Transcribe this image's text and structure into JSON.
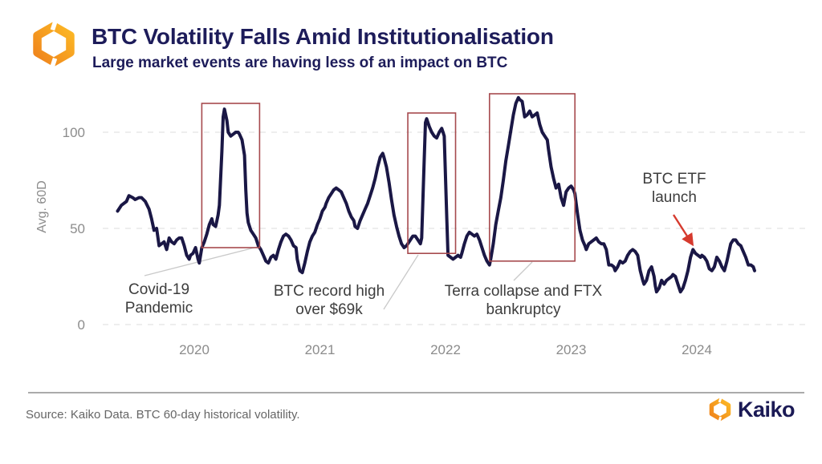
{
  "header": {
    "title": "BTC Volatility Falls Amid Institutionalisation",
    "subtitle": "Large market events are having less of an impact on BTC"
  },
  "footer": {
    "source": "Source: Kaiko Data. BTC 60-day historical volatility.",
    "brand": "Kaiko"
  },
  "colors": {
    "line": "#1a1745",
    "title_navy": "#1d1c5a",
    "highlight_box": "#a64a4e",
    "arrow_red": "#d63a2e",
    "leader_gray": "#c9c9c9",
    "gridline": "#e8e8e8",
    "axis_text": "#8c8c8c",
    "annotation_text": "#3d3d3d",
    "logo_orange_dark": "#ef831c",
    "logo_orange_light": "#fcb825"
  },
  "chart_data": {
    "type": "line",
    "title": "BTC Volatility Falls Amid Institutionalisation",
    "subtitle": "Large market events are having less of an impact on BTC",
    "ylabel": "Avg. 60D",
    "xlabel": "",
    "grid": "horizontal-dashed",
    "legend": "none",
    "y_ticks": [
      0,
      50,
      100
    ],
    "x_ticks": [
      2020,
      2021,
      2022,
      2023,
      2024
    ],
    "ylim": [
      0,
      121
    ],
    "xlim": [
      2019.3,
      2024.55
    ],
    "series": [
      {
        "name": "BTC 60-day historical volatility",
        "points": [
          [
            2019.39,
            59
          ],
          [
            2019.42,
            62
          ],
          [
            2019.46,
            64
          ],
          [
            2019.48,
            67
          ],
          [
            2019.51,
            66
          ],
          [
            2019.53,
            65
          ],
          [
            2019.56,
            66
          ],
          [
            2019.58,
            66
          ],
          [
            2019.61,
            64
          ],
          [
            2019.64,
            60
          ],
          [
            2019.66,
            55
          ],
          [
            2019.68,
            49
          ],
          [
            2019.7,
            50
          ],
          [
            2019.72,
            41
          ],
          [
            2019.74,
            42
          ],
          [
            2019.76,
            43
          ],
          [
            2019.78,
            39
          ],
          [
            2019.8,
            45
          ],
          [
            2019.82,
            43
          ],
          [
            2019.84,
            42
          ],
          [
            2019.86,
            44
          ],
          [
            2019.88,
            45
          ],
          [
            2019.9,
            45
          ],
          [
            2019.92,
            41
          ],
          [
            2019.94,
            36
          ],
          [
            2019.96,
            34
          ],
          [
            2019.97,
            36
          ],
          [
            2019.99,
            37
          ],
          [
            2020.01,
            40
          ],
          [
            2020.03,
            34
          ],
          [
            2020.04,
            32
          ],
          [
            2020.06,
            40
          ],
          [
            2020.08,
            43
          ],
          [
            2020.1,
            47
          ],
          [
            2020.12,
            52
          ],
          [
            2020.14,
            55
          ],
          [
            2020.15,
            52
          ],
          [
            2020.17,
            51
          ],
          [
            2020.18,
            54
          ],
          [
            2020.19,
            57
          ],
          [
            2020.2,
            62
          ],
          [
            2020.22,
            90
          ],
          [
            2020.23,
            108
          ],
          [
            2020.24,
            112
          ],
          [
            2020.26,
            106
          ],
          [
            2020.27,
            100
          ],
          [
            2020.29,
            98
          ],
          [
            2020.31,
            99
          ],
          [
            2020.33,
            100
          ],
          [
            2020.35,
            100
          ],
          [
            2020.36,
            99
          ],
          [
            2020.38,
            96
          ],
          [
            2020.4,
            88
          ],
          [
            2020.41,
            70
          ],
          [
            2020.42,
            58
          ],
          [
            2020.43,
            53
          ],
          [
            2020.45,
            49
          ],
          [
            2020.47,
            47
          ],
          [
            2020.49,
            45
          ],
          [
            2020.51,
            41
          ],
          [
            2020.53,
            39
          ],
          [
            2020.55,
            36
          ],
          [
            2020.57,
            33
          ],
          [
            2020.59,
            32
          ],
          [
            2020.61,
            35
          ],
          [
            2020.63,
            36
          ],
          [
            2020.65,
            34
          ],
          [
            2020.67,
            39
          ],
          [
            2020.69,
            43
          ],
          [
            2020.71,
            46
          ],
          [
            2020.73,
            47
          ],
          [
            2020.75,
            46
          ],
          [
            2020.77,
            44
          ],
          [
            2020.79,
            41
          ],
          [
            2020.81,
            40
          ],
          [
            2020.82,
            34
          ],
          [
            2020.84,
            28
          ],
          [
            2020.86,
            27
          ],
          [
            2020.88,
            32
          ],
          [
            2020.9,
            38
          ],
          [
            2020.92,
            43
          ],
          [
            2020.94,
            46
          ],
          [
            2020.96,
            48
          ],
          [
            2020.98,
            52
          ],
          [
            2021.0,
            55
          ],
          [
            2021.02,
            59
          ],
          [
            2021.04,
            61
          ],
          [
            2021.05,
            63
          ],
          [
            2021.07,
            66
          ],
          [
            2021.09,
            68
          ],
          [
            2021.11,
            70
          ],
          [
            2021.13,
            71
          ],
          [
            2021.15,
            70
          ],
          [
            2021.17,
            69
          ],
          [
            2021.19,
            66
          ],
          [
            2021.21,
            63
          ],
          [
            2021.23,
            59
          ],
          [
            2021.25,
            56
          ],
          [
            2021.27,
            54
          ],
          [
            2021.28,
            51
          ],
          [
            2021.3,
            50
          ],
          [
            2021.32,
            54
          ],
          [
            2021.34,
            57
          ],
          [
            2021.36,
            60
          ],
          [
            2021.38,
            63
          ],
          [
            2021.4,
            67
          ],
          [
            2021.42,
            71
          ],
          [
            2021.44,
            76
          ],
          [
            2021.46,
            82
          ],
          [
            2021.48,
            87
          ],
          [
            2021.5,
            89
          ],
          [
            2021.51,
            87
          ],
          [
            2021.53,
            82
          ],
          [
            2021.55,
            74
          ],
          [
            2021.57,
            65
          ],
          [
            2021.59,
            57
          ],
          [
            2021.61,
            51
          ],
          [
            2021.63,
            46
          ],
          [
            2021.65,
            42
          ],
          [
            2021.67,
            40
          ],
          [
            2021.69,
            41
          ],
          [
            2021.71,
            43
          ],
          [
            2021.73,
            45
          ],
          [
            2021.74,
            46
          ],
          [
            2021.76,
            46
          ],
          [
            2021.78,
            44
          ],
          [
            2021.8,
            42
          ],
          [
            2021.81,
            45
          ],
          [
            2021.83,
            85
          ],
          [
            2021.84,
            105
          ],
          [
            2021.85,
            107
          ],
          [
            2021.87,
            103
          ],
          [
            2021.89,
            100
          ],
          [
            2021.91,
            98
          ],
          [
            2021.93,
            97
          ],
          [
            2021.95,
            100
          ],
          [
            2021.97,
            102
          ],
          [
            2021.98,
            100
          ],
          [
            2021.99,
            98
          ],
          [
            2022.01,
            55
          ],
          [
            2022.02,
            36
          ],
          [
            2022.04,
            35
          ],
          [
            2022.06,
            34
          ],
          [
            2022.08,
            35
          ],
          [
            2022.1,
            36
          ],
          [
            2022.12,
            35
          ],
          [
            2022.13,
            37
          ],
          [
            2022.15,
            42
          ],
          [
            2022.17,
            46
          ],
          [
            2022.19,
            48
          ],
          [
            2022.21,
            47
          ],
          [
            2022.23,
            46
          ],
          [
            2022.25,
            47
          ],
          [
            2022.27,
            44
          ],
          [
            2022.29,
            40
          ],
          [
            2022.31,
            36
          ],
          [
            2022.33,
            33
          ],
          [
            2022.35,
            31
          ],
          [
            2022.36,
            34
          ],
          [
            2022.38,
            42
          ],
          [
            2022.4,
            52
          ],
          [
            2022.42,
            59
          ],
          [
            2022.44,
            66
          ],
          [
            2022.46,
            75
          ],
          [
            2022.48,
            85
          ],
          [
            2022.5,
            93
          ],
          [
            2022.52,
            101
          ],
          [
            2022.54,
            109
          ],
          [
            2022.56,
            115
          ],
          [
            2022.58,
            118
          ],
          [
            2022.59,
            117
          ],
          [
            2022.61,
            116
          ],
          [
            2022.63,
            108
          ],
          [
            2022.65,
            109
          ],
          [
            2022.67,
            111
          ],
          [
            2022.69,
            108
          ],
          [
            2022.71,
            109
          ],
          [
            2022.73,
            110
          ],
          [
            2022.75,
            104
          ],
          [
            2022.77,
            100
          ],
          [
            2022.79,
            98
          ],
          [
            2022.81,
            96
          ],
          [
            2022.82,
            91
          ],
          [
            2022.84,
            82
          ],
          [
            2022.86,
            76
          ],
          [
            2022.88,
            71
          ],
          [
            2022.9,
            73
          ],
          [
            2022.92,
            66
          ],
          [
            2022.94,
            62
          ],
          [
            2022.96,
            69
          ],
          [
            2022.98,
            71
          ],
          [
            2023.0,
            72
          ],
          [
            2023.02,
            70
          ],
          [
            2023.03,
            68
          ],
          [
            2023.05,
            58
          ],
          [
            2023.07,
            49
          ],
          [
            2023.09,
            44
          ],
          [
            2023.11,
            41
          ],
          [
            2023.12,
            39
          ],
          [
            2023.14,
            42
          ],
          [
            2023.16,
            43
          ],
          [
            2023.18,
            44
          ],
          [
            2023.2,
            45
          ],
          [
            2023.22,
            43
          ],
          [
            2023.24,
            42
          ],
          [
            2023.26,
            42
          ],
          [
            2023.28,
            39
          ],
          [
            2023.3,
            31
          ],
          [
            2023.32,
            31
          ],
          [
            2023.34,
            30
          ],
          [
            2023.35,
            28
          ],
          [
            2023.37,
            30
          ],
          [
            2023.39,
            33
          ],
          [
            2023.41,
            32
          ],
          [
            2023.43,
            33
          ],
          [
            2023.45,
            36
          ],
          [
            2023.47,
            38
          ],
          [
            2023.49,
            39
          ],
          [
            2023.51,
            38
          ],
          [
            2023.53,
            36
          ],
          [
            2023.55,
            28
          ],
          [
            2023.57,
            23
          ],
          [
            2023.58,
            21
          ],
          [
            2023.6,
            23
          ],
          [
            2023.62,
            28
          ],
          [
            2023.64,
            30
          ],
          [
            2023.66,
            25
          ],
          [
            2023.67,
            20
          ],
          [
            2023.68,
            17
          ],
          [
            2023.7,
            19
          ],
          [
            2023.72,
            23
          ],
          [
            2023.74,
            21
          ],
          [
            2023.76,
            23
          ],
          [
            2023.78,
            24
          ],
          [
            2023.8,
            25
          ],
          [
            2023.81,
            26
          ],
          [
            2023.83,
            25
          ],
          [
            2023.85,
            21
          ],
          [
            2023.87,
            17
          ],
          [
            2023.89,
            19
          ],
          [
            2023.91,
            23
          ],
          [
            2023.93,
            28
          ],
          [
            2023.95,
            35
          ],
          [
            2023.97,
            39
          ],
          [
            2023.99,
            37
          ],
          [
            2024.01,
            36
          ],
          [
            2024.03,
            35
          ],
          [
            2024.04,
            36
          ],
          [
            2024.06,
            35
          ],
          [
            2024.08,
            33
          ],
          [
            2024.1,
            29
          ],
          [
            2024.12,
            28
          ],
          [
            2024.14,
            30
          ],
          [
            2024.16,
            35
          ],
          [
            2024.18,
            33
          ],
          [
            2024.2,
            30
          ],
          [
            2024.22,
            28
          ],
          [
            2024.24,
            33
          ],
          [
            2024.26,
            39
          ],
          [
            2024.27,
            42
          ],
          [
            2024.29,
            44
          ],
          [
            2024.31,
            44
          ],
          [
            2024.33,
            42
          ],
          [
            2024.35,
            41
          ],
          [
            2024.37,
            38
          ],
          [
            2024.39,
            35
          ],
          [
            2024.41,
            31
          ],
          [
            2024.43,
            31
          ],
          [
            2024.45,
            30
          ],
          [
            2024.46,
            28
          ]
        ]
      }
    ],
    "highlight_boxes": [
      {
        "label": "Covid-19 Pandemic",
        "x1": 2020.06,
        "x2": 2020.52,
        "y1": 40,
        "y2": 115
      },
      {
        "label": "BTC record high over $69k",
        "x1": 2021.7,
        "x2": 2022.08,
        "y1": 37,
        "y2": 110
      },
      {
        "label": "Terra collapse and FTX bankruptcy",
        "x1": 2022.35,
        "x2": 2023.03,
        "y1": 33,
        "y2": 120
      }
    ],
    "annotations": [
      {
        "id": "covid",
        "text": "Covid-19\nPandemic"
      },
      {
        "id": "btc_high",
        "text": "BTC record high\nover $69k"
      },
      {
        "id": "terra",
        "text": "Terra collapse and FTX\nbankruptcy"
      },
      {
        "id": "etf",
        "text": "BTC ETF\nlaunch"
      }
    ]
  }
}
